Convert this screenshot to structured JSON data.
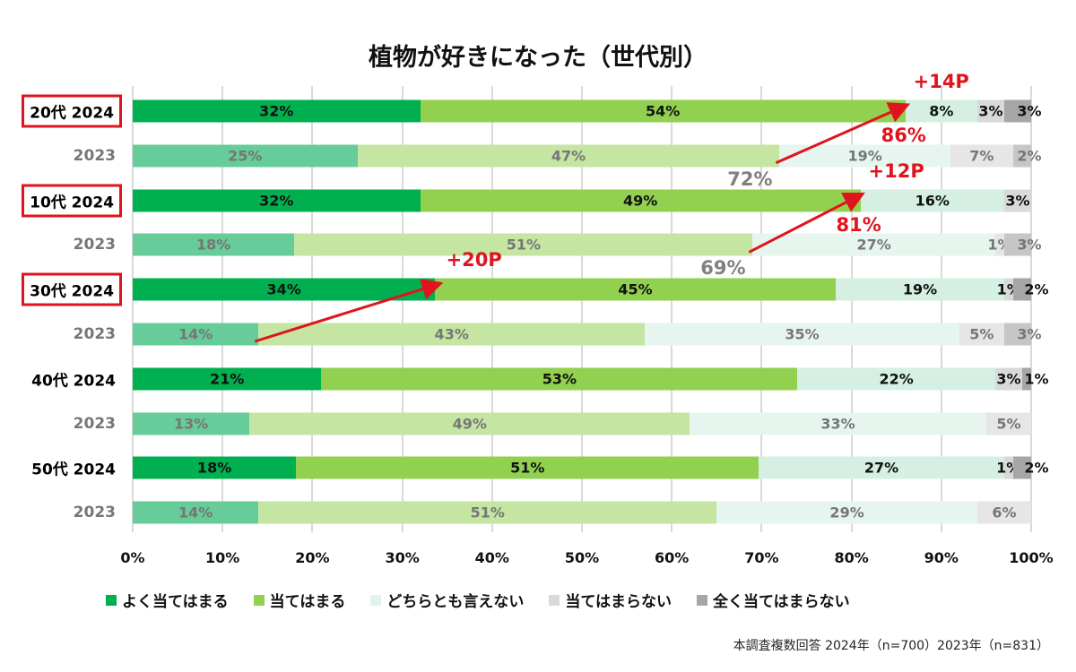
{
  "chart_data": {
    "type": "bar",
    "orientation": "horizontal",
    "stacked": "100%",
    "title": "植物が好きになった（世代別）",
    "xlim": [
      0,
      100
    ],
    "x_ticks": [
      "0%",
      "10%",
      "20%",
      "30%",
      "40%",
      "50%",
      "60%",
      "70%",
      "80%",
      "90%",
      "100%"
    ],
    "grid": true,
    "legend_placement": "bottom",
    "series_names": [
      "よく当てはまる",
      "当てはまる",
      "どちらとも言えない",
      "当てはまらない",
      "全く当てはまらない"
    ],
    "colors_2024": [
      "#00b050",
      "#92d050",
      "#d5f0e3",
      "#d9d9d9",
      "#a6a6a6"
    ],
    "colors_2023": [
      "#66cc99",
      "#c4e6a2",
      "#e6f6ee",
      "#e6e6e6",
      "#c6c6c6"
    ],
    "rows": [
      {
        "label": "20代 2024",
        "year": "2024",
        "boxed": true,
        "values": [
          32,
          54,
          8,
          3,
          3
        ],
        "labels": [
          "32%",
          "54%",
          "8%",
          "3%",
          "3%"
        ]
      },
      {
        "label": "2023",
        "year": "2023",
        "boxed": false,
        "values": [
          25,
          47,
          19,
          7,
          2
        ],
        "labels": [
          "25%",
          "47%",
          "19%",
          "7%",
          "2%"
        ]
      },
      {
        "label": "10代 2024",
        "year": "2024",
        "boxed": true,
        "values": [
          32,
          49,
          16,
          3,
          0
        ],
        "labels": [
          "32%",
          "49%",
          "16%",
          "3%",
          ""
        ]
      },
      {
        "label": "2023",
        "year": "2023",
        "boxed": false,
        "values": [
          18,
          51,
          27,
          1,
          3
        ],
        "labels": [
          "18%",
          "51%",
          "27%",
          "1%",
          "3%"
        ]
      },
      {
        "label": "30代 2024",
        "year": "2024",
        "boxed": true,
        "values": [
          34,
          45,
          19,
          1,
          2
        ],
        "labels": [
          "34%",
          "45%",
          "19%",
          "1%",
          "2%"
        ]
      },
      {
        "label": "2023",
        "year": "2023",
        "boxed": false,
        "values": [
          14,
          43,
          35,
          5,
          3
        ],
        "labels": [
          "14%",
          "43%",
          "35%",
          "5%",
          "3%"
        ]
      },
      {
        "label": "40代 2024",
        "year": "2024",
        "boxed": false,
        "values": [
          21,
          53,
          22,
          3,
          1
        ],
        "labels": [
          "21%",
          "53%",
          "22%",
          "3%",
          "1%"
        ]
      },
      {
        "label": "2023",
        "year": "2023",
        "boxed": false,
        "values": [
          13,
          49,
          33,
          5,
          0
        ],
        "labels": [
          "13%",
          "49%",
          "33%",
          "5%",
          ""
        ]
      },
      {
        "label": "50代 2024",
        "year": "2024",
        "boxed": false,
        "values": [
          18,
          51,
          27,
          1,
          2
        ],
        "labels": [
          "18%",
          "51%",
          "27%",
          "1%",
          "2%"
        ]
      },
      {
        "label": "2023",
        "year": "2023",
        "boxed": false,
        "values": [
          14,
          51,
          29,
          6,
          0
        ],
        "labels": [
          "14%",
          "51%",
          "29%",
          "6%",
          ""
        ]
      }
    ],
    "annotations": [
      {
        "from_row": 1,
        "to_row": 0,
        "from_value": 72,
        "to_value": 86,
        "from_label": "72%",
        "to_label": "86%",
        "delta": "+14P"
      },
      {
        "from_row": 3,
        "to_row": 2,
        "from_value": 69,
        "to_value": 81,
        "from_label": "69%",
        "to_label": "81%",
        "delta": "+12P"
      },
      {
        "from_row": 5,
        "to_row": 4,
        "from_value": 14,
        "to_value": 34,
        "delta": "+20P"
      }
    ],
    "annotation_color": "#e0141e"
  },
  "footnote": "本調査複数回答  2024年（n=700）2023年（n=831）"
}
